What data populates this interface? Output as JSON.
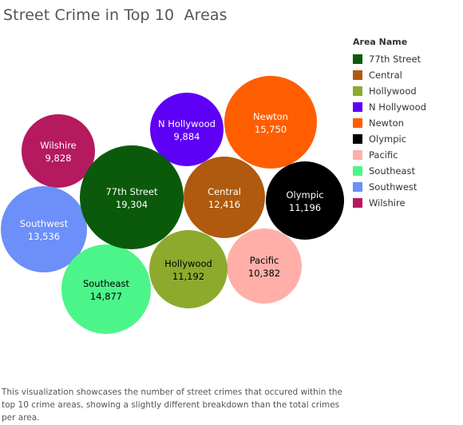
{
  "title": "Street Crime in Top 10  Areas",
  "legend": {
    "title": "Area Name",
    "placement": "right"
  },
  "caption": "This visualization showcases the number of street crimes that occured within the top 10 crime areas, showing a slightly different breakdown than the total crimes per area.",
  "chart_data": {
    "type": "bubble",
    "title": "Street Crime in Top 10  Areas",
    "legend_title": "Area Name",
    "series": [
      {
        "name": "77th Street",
        "label": "77th Street",
        "value_label": "19,304",
        "value": 19304,
        "color": "#0B5A0B",
        "text_color": "#ffffff"
      },
      {
        "name": "Central",
        "label": "Central",
        "value_label": "12,416",
        "value": 12416,
        "color": "#AF5A0E",
        "text_color": "#ffffff"
      },
      {
        "name": "Hollywood",
        "label": "Hollywood",
        "value_label": "11,192",
        "value": 11192,
        "color": "#8DAA2D",
        "text_color": "#000000"
      },
      {
        "name": "N Hollywood",
        "label": "N Hollywood",
        "value_label": "9,884",
        "value": 9884,
        "color": "#5D00F5",
        "text_color": "#ffffff"
      },
      {
        "name": "Newton",
        "label": "Newton",
        "value_label": "15,750",
        "value": 15750,
        "color": "#FF5E00",
        "text_color": "#ffffff"
      },
      {
        "name": "Olympic",
        "label": "Olympic",
        "value_label": "11,196",
        "value": 11196,
        "color": "#000000",
        "text_color": "#ffffff"
      },
      {
        "name": "Pacific",
        "label": "Pacific",
        "value_label": "10,382",
        "value": 10382,
        "color": "#FFAFA8",
        "text_color": "#000000"
      },
      {
        "name": "Southeast",
        "label": "Southeast",
        "value_label": "14,877",
        "value": 14877,
        "color": "#4CF58A",
        "text_color": "#000000"
      },
      {
        "name": "Southwest",
        "label": "Southwest",
        "value_label": "13,536",
        "value": 13536,
        "color": "#6C8FF9",
        "text_color": "#ffffff"
      },
      {
        "name": "Wilshire",
        "label": "Wilshire",
        "value_label": "9,828",
        "value": 9828,
        "color": "#B5195E",
        "text_color": "#ffffff"
      }
    ]
  }
}
